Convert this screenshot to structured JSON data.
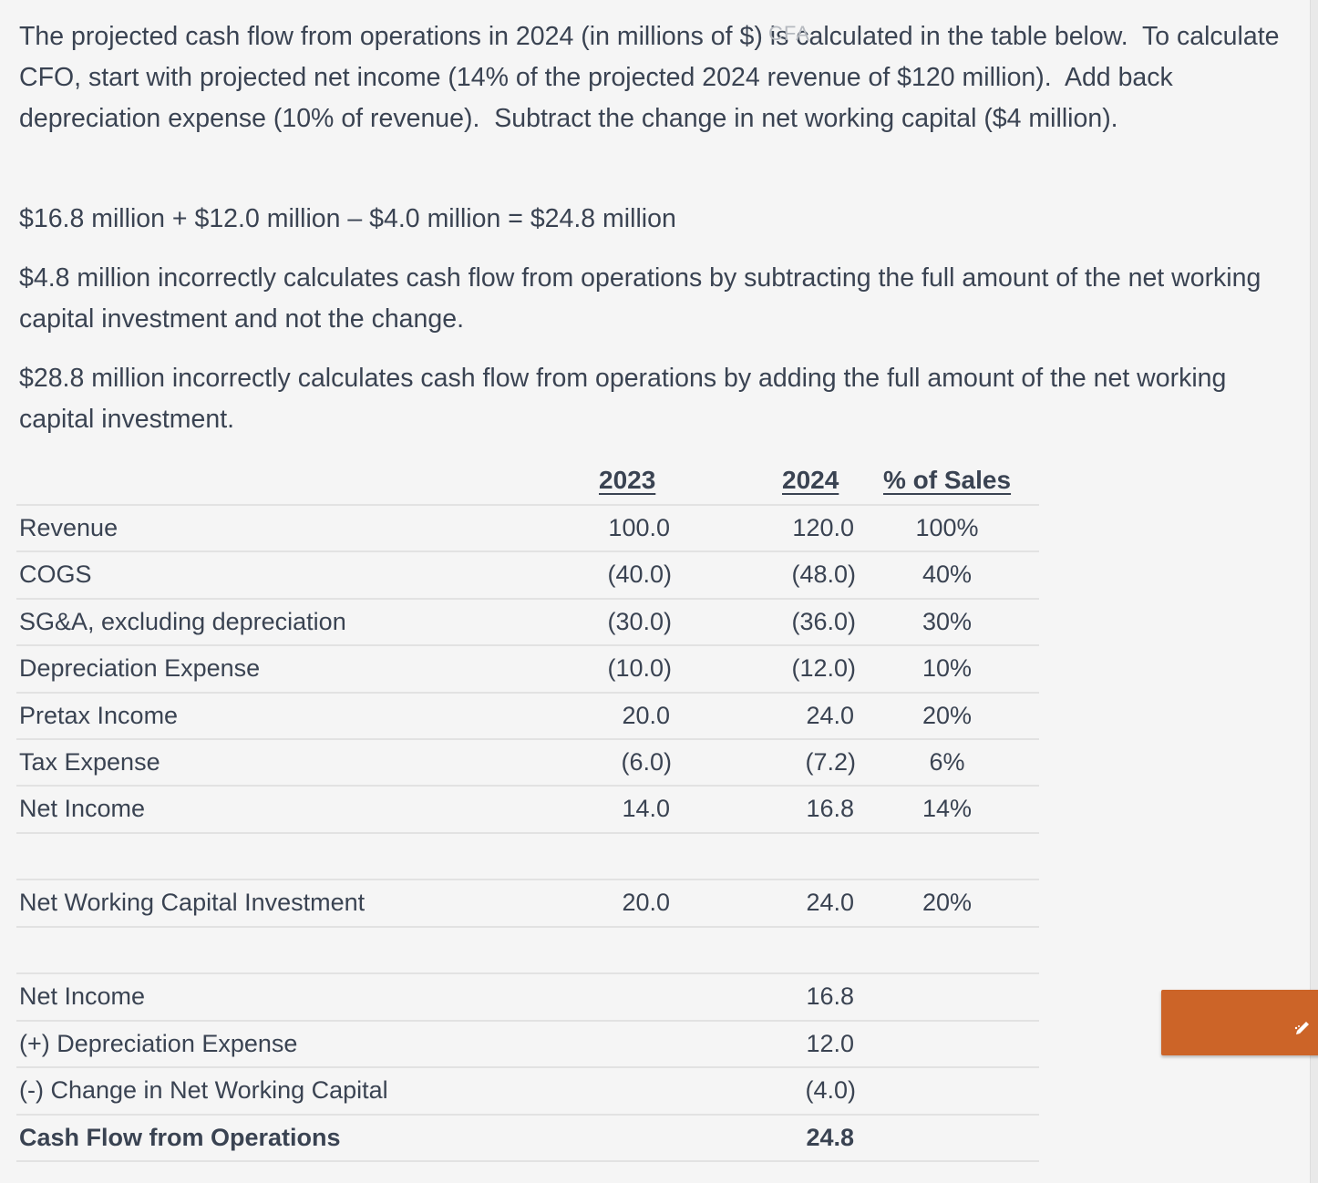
{
  "watermark": "CFA",
  "explanation": {
    "p1": "The projected cash flow from operations in 2024 (in millions of $) is calculated in the table below.  To calculate CFO, start with projected net income (14% of the projected 2024 revenue of $120 million).  Add back depreciation expense (10% of revenue).  Subtract the change in net working capital ($4 million).",
    "p2": "$16.8 million + $12.0 million – $4.0 million = $24.8 million",
    "p3": "$4.8 million incorrectly calculates cash flow from operations by subtracting the full amount of the net working capital investment and not the change.",
    "p4": "$28.8 million incorrectly calculates cash flow from operations by adding the full amount of the net working capital investment."
  },
  "table": {
    "headers": {
      "y2023": "2023",
      "y2024": "2024",
      "pct": "% of Sales"
    },
    "rows": [
      {
        "label": "Revenue",
        "y2023": "100.0",
        "y2024": "120.0",
        "pct": "100%"
      },
      {
        "label": "COGS",
        "y2023": "(40.0)",
        "y2024": "(48.0)",
        "pct": "40%"
      },
      {
        "label": "SG&A, excluding depreciation",
        "y2023": "(30.0)",
        "y2024": "(36.0)",
        "pct": "30%"
      },
      {
        "label": "Depreciation Expense",
        "y2023": "(10.0)",
        "y2024": "(12.0)",
        "pct": "10%"
      },
      {
        "label": "Pretax Income",
        "y2023": "20.0",
        "y2024": "24.0",
        "pct": "20%"
      },
      {
        "label": "Tax Expense",
        "y2023": "(6.0)",
        "y2024": "(7.2)",
        "pct": "6%"
      },
      {
        "label": "Net Income",
        "y2023": "14.0",
        "y2024": "16.8",
        "pct": "14%"
      },
      {
        "label": "Net Working Capital Investment",
        "y2023": "20.0",
        "y2024": "24.0",
        "pct": "20%"
      },
      {
        "label": "Net Income",
        "y2023": "",
        "y2024": "16.8",
        "pct": ""
      },
      {
        "label": "(+) Depreciation Expense",
        "y2023": "",
        "y2024": "12.0",
        "pct": ""
      },
      {
        "label": "(-) Change in Net Working Capital",
        "y2023": "",
        "y2024": "(4.0)",
        "pct": ""
      },
      {
        "label": "Cash Flow from Operations",
        "y2023": "",
        "y2024": "24.8",
        "pct": ""
      }
    ]
  },
  "orange_tab": {
    "icon": "pencil-icon",
    "color": "#cc6428"
  }
}
